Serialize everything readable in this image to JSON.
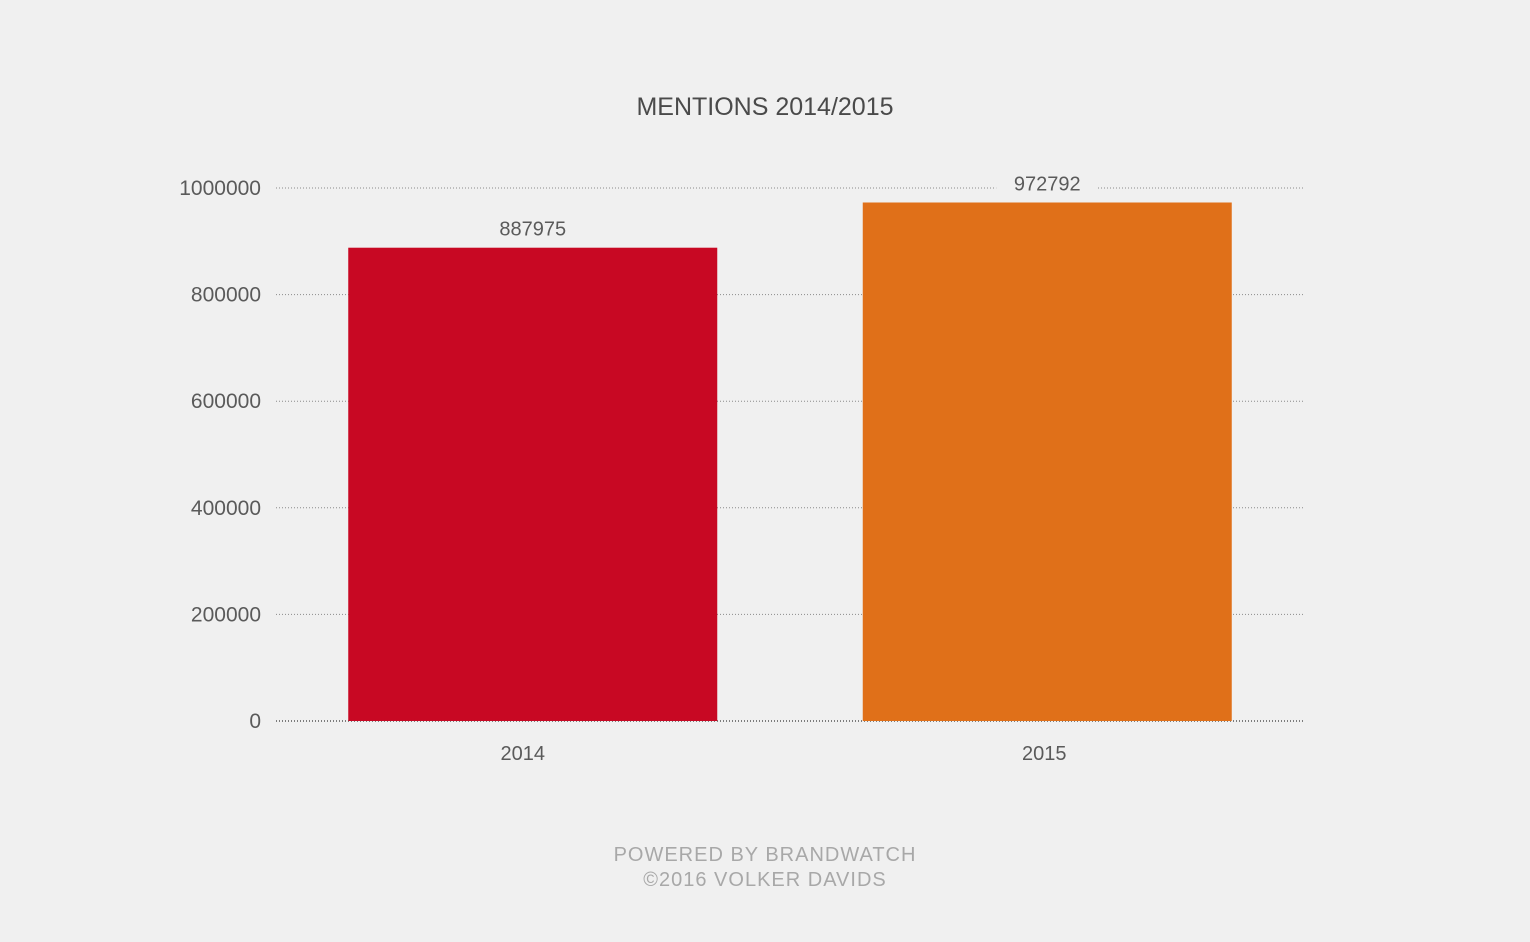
{
  "chart_data": {
    "type": "bar",
    "title": "MENTIONS 2014/2015",
    "categories": [
      "2014",
      "2015"
    ],
    "values": [
      887975,
      972792
    ],
    "data_labels": [
      "887975",
      "972792"
    ],
    "colors": [
      "#c80823",
      "#e07019"
    ],
    "ylim": [
      0,
      1000000
    ],
    "y_ticks": [
      0,
      200000,
      400000,
      600000,
      800000,
      1000000
    ],
    "y_tick_labels": [
      "0",
      "200000",
      "400000",
      "600000",
      "800000",
      "1000000"
    ],
    "xlabel": "",
    "ylabel": "",
    "grid": true,
    "legend": "none"
  },
  "footer": {
    "line1": "POWERED BY BRANDWATCH",
    "line2": "©2016 VOLKER DAVIDS"
  }
}
